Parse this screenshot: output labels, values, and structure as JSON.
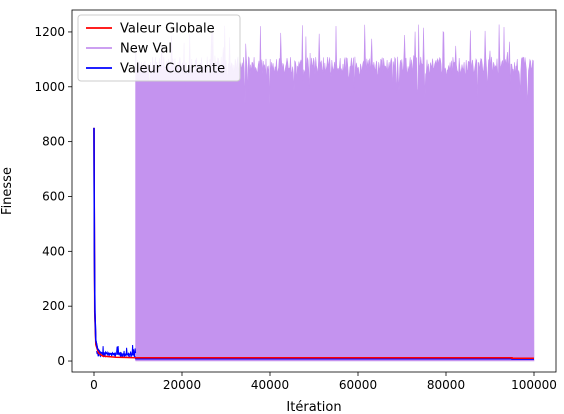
{
  "chart_data": {
    "type": "line",
    "title": "",
    "xlabel": "Itération",
    "ylabel": "Finesse",
    "xlim": [
      -5000,
      105000
    ],
    "ylim": [
      -40,
      1280
    ],
    "x_ticks": [
      0,
      20000,
      40000,
      60000,
      80000,
      100000
    ],
    "x_tick_labels": [
      "0",
      "20000",
      "40000",
      "60000",
      "80000",
      "100000"
    ],
    "y_ticks": [
      0,
      200,
      400,
      600,
      800,
      1000,
      1200
    ],
    "y_tick_labels": [
      "0",
      "200",
      "400",
      "600",
      "800",
      "1000",
      "1200"
    ],
    "grid": false,
    "legend_position": "top-left",
    "series": [
      {
        "name": "Valeur Globale",
        "color": "#ff0000",
        "x": [
          0,
          150,
          400,
          1000,
          2000,
          5000,
          9500,
          20000,
          40000,
          60000,
          80000,
          95000,
          95001,
          100000
        ],
        "y": [
          850,
          180,
          60,
          30,
          18,
          14,
          12,
          12,
          12,
          12,
          12,
          12,
          10,
          10
        ]
      },
      {
        "name": "New Val",
        "color": "#c493ef",
        "x_start": 9500,
        "x_end": 100000,
        "band_low": 0,
        "band_typical_high": 1110,
        "band_peak_high": 1235
      },
      {
        "name": "Valeur Courante",
        "color": "#0000ff",
        "x": [
          0,
          100,
          200,
          400,
          800,
          1500,
          3000,
          5000,
          7000,
          9000,
          9500,
          20000,
          60000,
          95000,
          95001,
          100000
        ],
        "y": [
          850,
          400,
          180,
          75,
          45,
          30,
          28,
          26,
          25,
          24,
          8,
          8,
          8,
          8,
          7,
          7
        ],
        "noise_until_x": 9500,
        "noise_band": [
          2,
          60
        ]
      }
    ]
  }
}
